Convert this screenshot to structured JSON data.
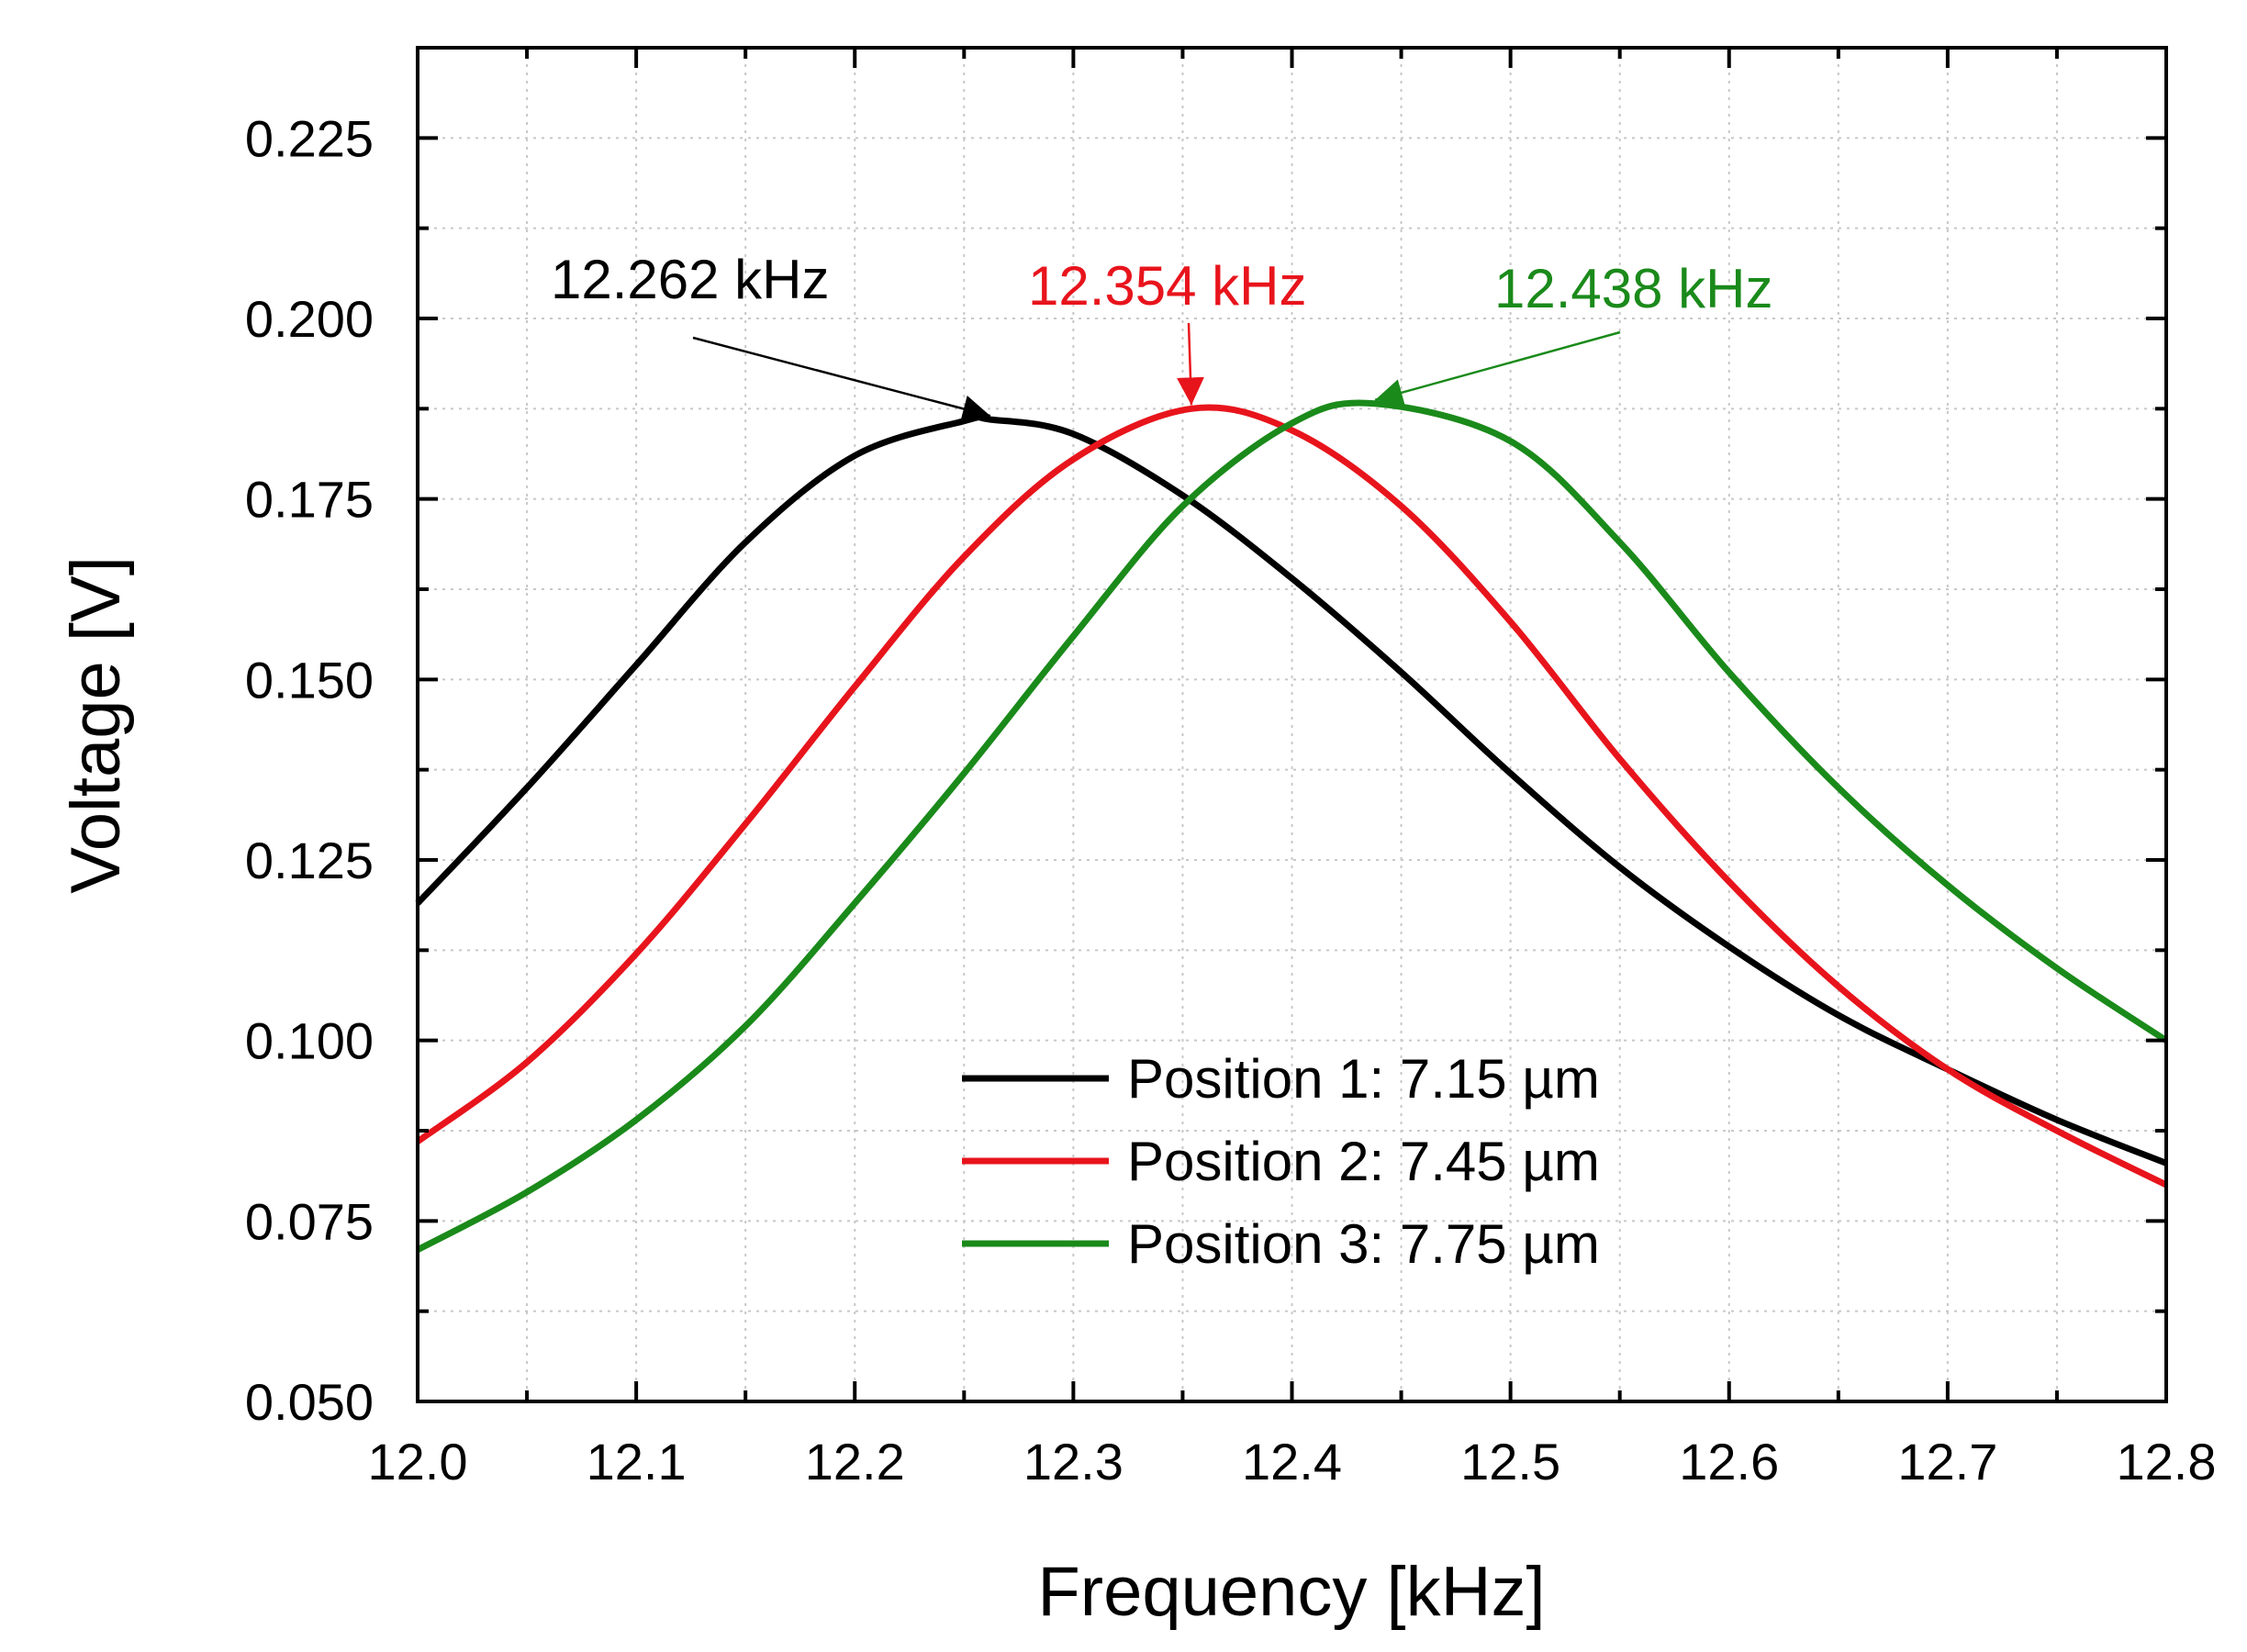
{
  "chart_data": {
    "type": "line",
    "xlabel": "Frequency [kHz]",
    "ylabel": "Voltage [V]",
    "xlim": [
      12.0,
      12.8
    ],
    "ylim": [
      0.05,
      0.2375
    ],
    "x_ticks": [
      "12.0",
      "12.1",
      "12.2",
      "12.3",
      "12.4",
      "12.5",
      "12.6",
      "12.7",
      "12.8"
    ],
    "y_ticks": [
      "0.050",
      "0.075",
      "0.100",
      "0.125",
      "0.150",
      "0.175",
      "0.200",
      "0.225"
    ],
    "grid": true,
    "legend_position": "bottom-center",
    "series": [
      {
        "name": "Position 1: 7.15 µm",
        "color": "#000000",
        "peak_x": 12.262,
        "x": [
          12.0,
          12.05,
          12.1,
          12.15,
          12.2,
          12.25,
          12.262,
          12.3,
          12.35,
          12.4,
          12.45,
          12.5,
          12.55,
          12.6,
          12.65,
          12.7,
          12.75,
          12.8
        ],
        "y": [
          0.119,
          0.135,
          0.152,
          0.169,
          0.181,
          0.1858,
          0.186,
          0.184,
          0.1755,
          0.164,
          0.151,
          0.137,
          0.124,
          0.113,
          0.1035,
          0.096,
          0.089,
          0.083
        ]
      },
      {
        "name": "Position 2: 7.45 µm",
        "color": "#e8141c",
        "peak_x": 12.354,
        "x": [
          12.0,
          12.05,
          12.1,
          12.15,
          12.2,
          12.25,
          12.3,
          12.354,
          12.4,
          12.45,
          12.5,
          12.55,
          12.6,
          12.65,
          12.7,
          12.75,
          12.8
        ],
        "y": [
          0.086,
          0.097,
          0.112,
          0.13,
          0.149,
          0.167,
          0.1805,
          0.1875,
          0.1845,
          0.174,
          0.158,
          0.139,
          0.122,
          0.1075,
          0.096,
          0.0875,
          0.08
        ]
      },
      {
        "name": "Position 3: 7.75 µm",
        "color": "#1a8a1a",
        "peak_x": 12.438,
        "x": [
          12.0,
          12.05,
          12.1,
          12.15,
          12.2,
          12.25,
          12.3,
          12.35,
          12.4,
          12.438,
          12.5,
          12.55,
          12.6,
          12.65,
          12.7,
          12.75,
          12.8
        ],
        "y": [
          0.071,
          0.079,
          0.089,
          0.102,
          0.119,
          0.137,
          0.156,
          0.174,
          0.1855,
          0.1882,
          0.183,
          0.169,
          0.151,
          0.135,
          0.1215,
          0.11,
          0.1
        ]
      }
    ],
    "annotations": [
      {
        "text": "12.262 kHz",
        "color": "#000000",
        "target_x": 12.262,
        "target_y": 0.186
      },
      {
        "text": "12.354 kHz",
        "color": "#e8141c",
        "target_x": 12.354,
        "target_y": 0.1875
      },
      {
        "text": "12.438 kHz",
        "color": "#1a8a1a",
        "target_x": 12.438,
        "target_y": 0.1882
      }
    ]
  }
}
